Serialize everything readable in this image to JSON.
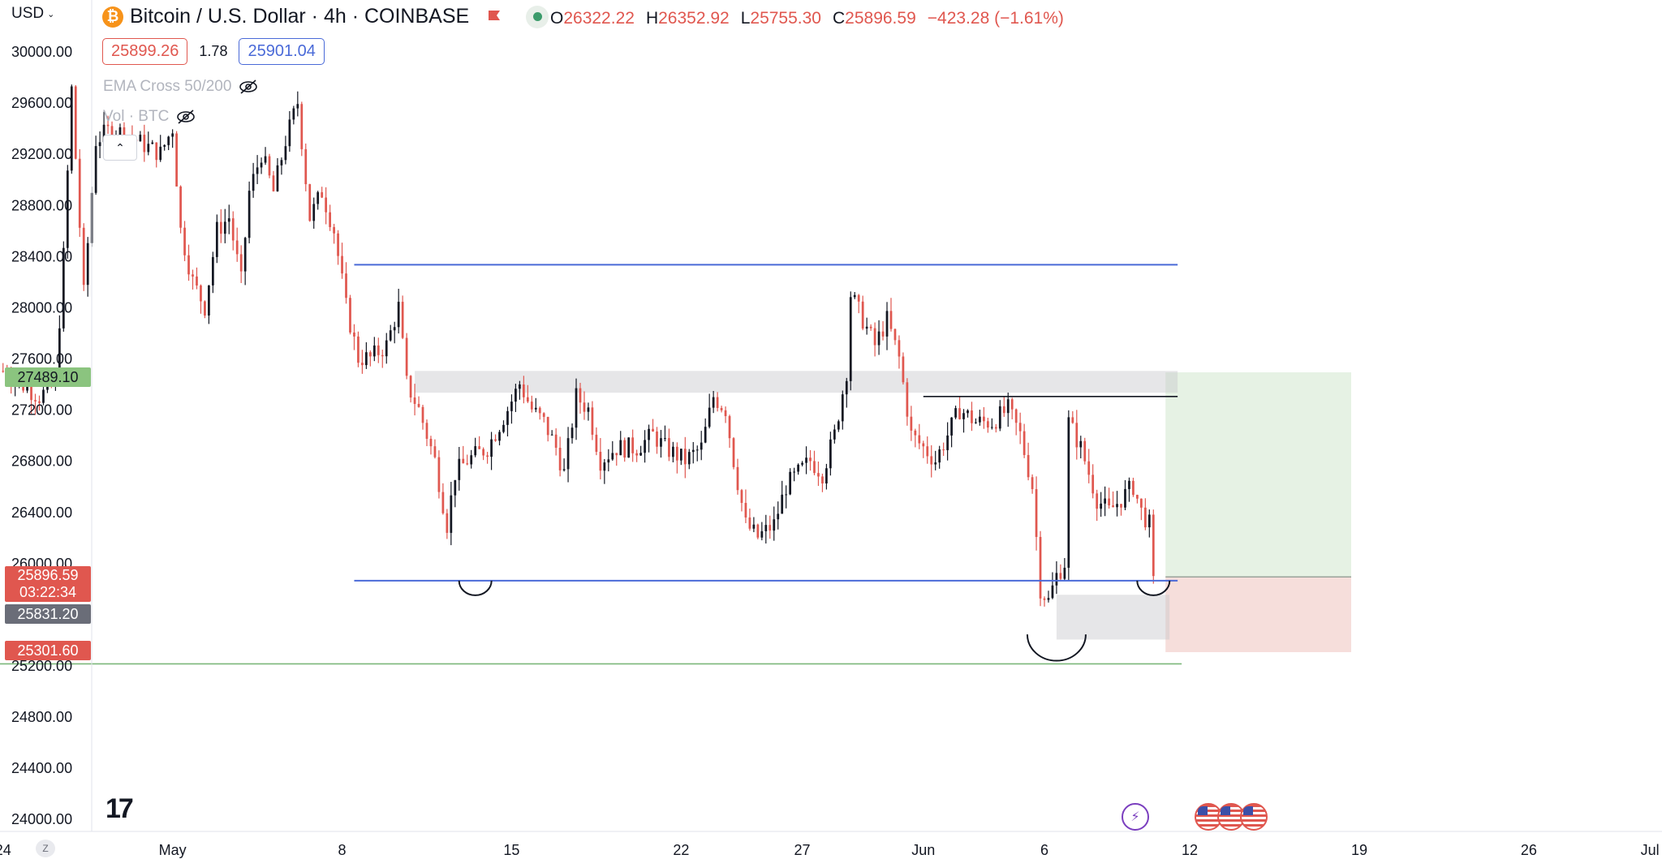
{
  "header": {
    "currency": "USD",
    "symbol_title": "Bitcoin / U.S. Dollar · 4h · COINBASE",
    "ohlc": [
      {
        "key": "O",
        "value": "26322.22"
      },
      {
        "key": "H",
        "value": "26352.92"
      },
      {
        "key": "L",
        "value": "25755.30"
      },
      {
        "key": "C",
        "value": "25896.59"
      }
    ],
    "change": "−423.28 (−1.61%)",
    "sell_price": "25899.26",
    "spread": "1.78",
    "buy_price": "25901.04"
  },
  "indicators": [
    {
      "label": "EMA Cross 50/200"
    },
    {
      "label": "Vol · BTC"
    }
  ],
  "price_labels": {
    "green": "27489.10",
    "current": "25896.59",
    "countdown": "03:22:34",
    "gray": "25831.20",
    "red": "25301.60"
  },
  "events": {
    "flags_count": 3
  },
  "colors": {
    "up": "#131722",
    "down": "#e0574f",
    "blue_line": "#4a6ad8",
    "green_line": "#7cb87a",
    "profit_zone": "#e6f2e4",
    "loss_zone": "#f6dedb"
  },
  "chart_data": {
    "type": "candlestick",
    "timeframe": "4h",
    "y_ticks": [
      30000,
      29600,
      29200,
      28800,
      28400,
      28000,
      27600,
      27200,
      26800,
      26400,
      26000,
      25600,
      25200,
      24800,
      24400,
      24000
    ],
    "y_tick_labels": [
      "30000.00",
      "29600.00",
      "29200.00",
      "28800.00",
      "28400.00",
      "28000.00",
      "27600.00",
      "27200.00",
      "26800.00",
      "26400.00",
      "26000.00",
      "25600.00",
      "25200.00",
      "24800.00",
      "24400.00",
      "24000.00"
    ],
    "ylim": [
      23900,
      30400
    ],
    "x_ticks": [
      {
        "label": "24",
        "date": "2023-04-24"
      },
      {
        "label": "May",
        "date": "2023-05-01"
      },
      {
        "label": "8",
        "date": "2023-05-08"
      },
      {
        "label": "15",
        "date": "2023-05-15"
      },
      {
        "label": "22",
        "date": "2023-05-22"
      },
      {
        "label": "27",
        "date": "2023-05-27"
      },
      {
        "label": "Jun",
        "date": "2023-06-01"
      },
      {
        "label": "6",
        "date": "2023-06-06"
      },
      {
        "label": "12",
        "date": "2023-06-12"
      },
      {
        "label": "19",
        "date": "2023-06-19"
      },
      {
        "label": "26",
        "date": "2023-06-26"
      },
      {
        "label": "Jul",
        "date": "2023-07-01"
      }
    ],
    "xlim": [
      "2023-04-23T21:00",
      "2023-07-01T12:00"
    ],
    "keypoints": [
      {
        "date": "2023-04-24T00:00",
        "close": 27500
      },
      {
        "date": "2023-04-25T12:00",
        "close": 27300
      },
      {
        "date": "2023-04-26T04:00",
        "close": 27400
      },
      {
        "date": "2023-04-26T12:00",
        "close": 28400
      },
      {
        "date": "2023-04-26T20:00",
        "close": 29700
      },
      {
        "date": "2023-04-27T08:00",
        "close": 28100
      },
      {
        "date": "2023-04-27T20:00",
        "close": 29300
      },
      {
        "date": "2023-04-28T12:00",
        "close": 29400
      },
      {
        "date": "2023-04-29T12:00",
        "close": 29300
      },
      {
        "date": "2023-04-30T12:00",
        "close": 29200
      },
      {
        "date": "2023-05-01T00:00",
        "close": 29400
      },
      {
        "date": "2023-05-01T08:00",
        "close": 28600
      },
      {
        "date": "2023-05-01T20:00",
        "close": 28200
      },
      {
        "date": "2023-05-02T08:00",
        "close": 28000
      },
      {
        "date": "2023-05-02T20:00",
        "close": 28600
      },
      {
        "date": "2023-05-03T08:00",
        "close": 28700
      },
      {
        "date": "2023-05-03T20:00",
        "close": 28200
      },
      {
        "date": "2023-05-04T04:00",
        "close": 28900
      },
      {
        "date": "2023-05-04T16:00",
        "close": 29200
      },
      {
        "date": "2023-05-05T04:00",
        "close": 28900
      },
      {
        "date": "2023-05-05T16:00",
        "close": 29300
      },
      {
        "date": "2023-05-06T04:00",
        "close": 29600
      },
      {
        "date": "2023-05-06T16:00",
        "close": 28700
      },
      {
        "date": "2023-05-07T04:00",
        "close": 28900
      },
      {
        "date": "2023-05-07T16:00",
        "close": 28600
      },
      {
        "date": "2023-05-08T04:00",
        "close": 28000
      },
      {
        "date": "2023-05-08T16:00",
        "close": 27600
      },
      {
        "date": "2023-05-09T04:00",
        "close": 27600
      },
      {
        "date": "2023-05-09T20:00",
        "close": 27700
      },
      {
        "date": "2023-05-10T08:00",
        "close": 28000
      },
      {
        "date": "2023-05-10T16:00",
        "close": 27400
      },
      {
        "date": "2023-05-11T04:00",
        "close": 27200
      },
      {
        "date": "2023-05-11T20:00",
        "close": 26800
      },
      {
        "date": "2023-05-12T08:00",
        "close": 26300
      },
      {
        "date": "2023-05-12T16:00",
        "close": 26700
      },
      {
        "date": "2023-05-13T04:00",
        "close": 26800
      },
      {
        "date": "2023-05-14T00:00",
        "close": 26900
      },
      {
        "date": "2023-05-14T20:00",
        "close": 27200
      },
      {
        "date": "2023-05-15T08:00",
        "close": 27400
      },
      {
        "date": "2023-05-15T20:00",
        "close": 27200
      },
      {
        "date": "2023-05-16T08:00",
        "close": 27100
      },
      {
        "date": "2023-05-16T20:00",
        "close": 26900
      },
      {
        "date": "2023-05-17T04:00",
        "close": 26700
      },
      {
        "date": "2023-05-17T16:00",
        "close": 27300
      },
      {
        "date": "2023-05-18T04:00",
        "close": 27200
      },
      {
        "date": "2023-05-18T16:00",
        "close": 26800
      },
      {
        "date": "2023-05-19T08:00",
        "close": 26900
      },
      {
        "date": "2023-05-20T04:00",
        "close": 26900
      },
      {
        "date": "2023-05-20T20:00",
        "close": 27000
      },
      {
        "date": "2023-05-21T08:00",
        "close": 26900
      },
      {
        "date": "2023-05-22T04:00",
        "close": 26800
      },
      {
        "date": "2023-05-22T20:00",
        "close": 26900
      },
      {
        "date": "2023-05-23T08:00",
        "close": 27300
      },
      {
        "date": "2023-05-23T20:00",
        "close": 27200
      },
      {
        "date": "2023-05-24T04:00",
        "close": 26800
      },
      {
        "date": "2023-05-24T16:00",
        "close": 26300
      },
      {
        "date": "2023-05-25T04:00",
        "close": 26200
      },
      {
        "date": "2023-05-25T20:00",
        "close": 26300
      },
      {
        "date": "2023-05-26T08:00",
        "close": 26600
      },
      {
        "date": "2023-05-26T20:00",
        "close": 26700
      },
      {
        "date": "2023-05-27T08:00",
        "close": 26800
      },
      {
        "date": "2023-05-27T20:00",
        "close": 26700
      },
      {
        "date": "2023-05-28T08:00",
        "close": 27000
      },
      {
        "date": "2023-05-28T20:00",
        "close": 27500
      },
      {
        "date": "2023-05-29T00:00",
        "close": 28100
      },
      {
        "date": "2023-05-29T12:00",
        "close": 27900
      },
      {
        "date": "2023-05-30T00:00",
        "close": 27700
      },
      {
        "date": "2023-05-30T12:00",
        "close": 27900
      },
      {
        "date": "2023-05-31T00:00",
        "close": 27600
      },
      {
        "date": "2023-05-31T12:00",
        "close": 27000
      },
      {
        "date": "2023-06-01T00:00",
        "close": 26900
      },
      {
        "date": "2023-06-01T12:00",
        "close": 26800
      },
      {
        "date": "2023-06-02T00:00",
        "close": 27000
      },
      {
        "date": "2023-06-02T12:00",
        "close": 27200
      },
      {
        "date": "2023-06-03T04:00",
        "close": 27100
      },
      {
        "date": "2023-06-03T20:00",
        "close": 27100
      },
      {
        "date": "2023-06-04T12:00",
        "close": 27200
      },
      {
        "date": "2023-06-05T00:00",
        "close": 27000
      },
      {
        "date": "2023-06-05T12:00",
        "close": 26600
      },
      {
        "date": "2023-06-05T20:00",
        "close": 25800
      },
      {
        "date": "2023-06-06T04:00",
        "close": 25700
      },
      {
        "date": "2023-06-06T12:00",
        "close": 25900
      },
      {
        "date": "2023-06-06T20:00",
        "close": 26000
      },
      {
        "date": "2023-06-07T00:00",
        "close": 27100
      },
      {
        "date": "2023-06-07T12:00",
        "close": 26900
      },
      {
        "date": "2023-06-07T20:00",
        "close": 26700
      },
      {
        "date": "2023-06-08T04:00",
        "close": 26500
      },
      {
        "date": "2023-06-08T16:00",
        "close": 26400
      },
      {
        "date": "2023-06-09T04:00",
        "close": 26500
      },
      {
        "date": "2023-06-09T16:00",
        "close": 26600
      },
      {
        "date": "2023-06-10T00:00",
        "close": 26400
      },
      {
        "date": "2023-06-10T08:00",
        "close": 26300
      },
      {
        "date": "2023-06-10T12:00",
        "close": 25896.59
      }
    ],
    "annotations": {
      "resistance_line": {
        "price": 28330,
        "from": "2023-05-08T12:00",
        "to": "2023-06-11T12:00"
      },
      "support_line": {
        "price": 25860,
        "from": "2023-05-08T12:00",
        "to": "2023-06-11T12:00"
      },
      "green_line": {
        "price": 25210,
        "from": "2023-04-23T21:00",
        "to": "2023-06-11T16:00"
      },
      "black_line": {
        "price": 27300,
        "from": "2023-06-01T00:00",
        "to": "2023-06-11T12:00"
      },
      "gray_band_top": {
        "low": 27330,
        "high": 27500,
        "from": "2023-05-11T00:00",
        "to": "2023-06-11T12:00"
      },
      "gray_band_bottom": {
        "low": 25400,
        "high": 25750,
        "from": "2023-06-06T12:00",
        "to": "2023-06-11T04:00"
      },
      "position": {
        "entry": 25890,
        "target": 27489.1,
        "stop": 25301.6,
        "from": "2023-06-11T00:00",
        "to": "2023-06-18T16:00"
      },
      "arcs": [
        {
          "date": "2023-05-13T12:00",
          "price": 25860
        },
        {
          "date": "2023-06-06T12:00",
          "price": 25440
        },
        {
          "date": "2023-06-10T12:00",
          "price": 25860
        }
      ]
    }
  }
}
